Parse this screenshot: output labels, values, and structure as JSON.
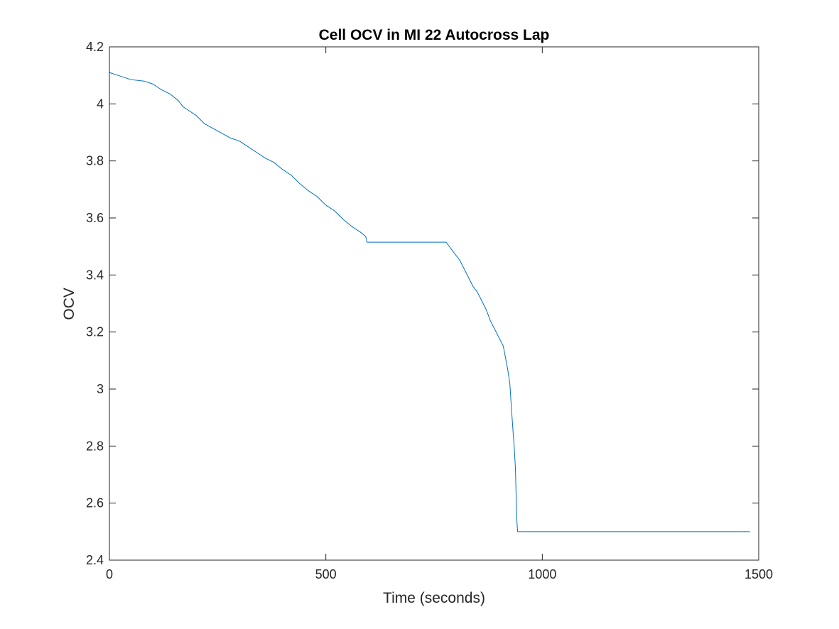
{
  "chart_data": {
    "type": "line",
    "title": "Cell OCV in MI 22 Autocross Lap",
    "xlabel": "Time (seconds)",
    "ylabel": "OCV",
    "xlim": [
      0,
      1500
    ],
    "ylim": [
      2.4,
      4.2
    ],
    "xticks": [
      0,
      500,
      1000,
      1500
    ],
    "xtick_labels": [
      "0",
      "500",
      "1000",
      "1500"
    ],
    "yticks": [
      2.4,
      2.6,
      2.8,
      3.0,
      3.2,
      3.4,
      3.6,
      3.8,
      4.0,
      4.2
    ],
    "ytick_labels": [
      "2.4",
      "2.6",
      "2.8",
      "3",
      "3.2",
      "3.4",
      "3.6",
      "3.8",
      "4",
      "4.2"
    ],
    "grid": false,
    "legend": "none",
    "line_color": "#0072bd",
    "series": [
      {
        "x": [
          0,
          20,
          50,
          80,
          100,
          120,
          140,
          160,
          170,
          180,
          200,
          220,
          250,
          280,
          300,
          320,
          340,
          360,
          380,
          400,
          420,
          440,
          460,
          480,
          500,
          520,
          540,
          560,
          580,
          592,
          595,
          700,
          778,
          790,
          800,
          810,
          820,
          830,
          840,
          850,
          860,
          870,
          880,
          890,
          900,
          910,
          915,
          920,
          925,
          928,
          932,
          935,
          938,
          940,
          941,
          942,
          943,
          945,
          950,
          1000,
          1100,
          1200,
          1300,
          1400,
          1480
        ],
        "y": [
          4.11,
          4.1,
          4.085,
          4.08,
          4.07,
          4.05,
          4.035,
          4.01,
          3.99,
          3.98,
          3.96,
          3.93,
          3.905,
          3.88,
          3.87,
          3.85,
          3.83,
          3.81,
          3.795,
          3.77,
          3.75,
          3.72,
          3.695,
          3.675,
          3.645,
          3.625,
          3.595,
          3.57,
          3.55,
          3.535,
          3.515,
          3.515,
          3.515,
          3.49,
          3.47,
          3.45,
          3.42,
          3.39,
          3.36,
          3.34,
          3.31,
          3.28,
          3.24,
          3.21,
          3.18,
          3.15,
          3.11,
          3.07,
          3.02,
          2.95,
          2.86,
          2.8,
          2.72,
          2.6,
          2.55,
          2.52,
          2.5,
          2.5,
          2.5,
          2.5,
          2.5,
          2.5,
          2.5,
          2.5,
          2.5
        ]
      }
    ]
  }
}
